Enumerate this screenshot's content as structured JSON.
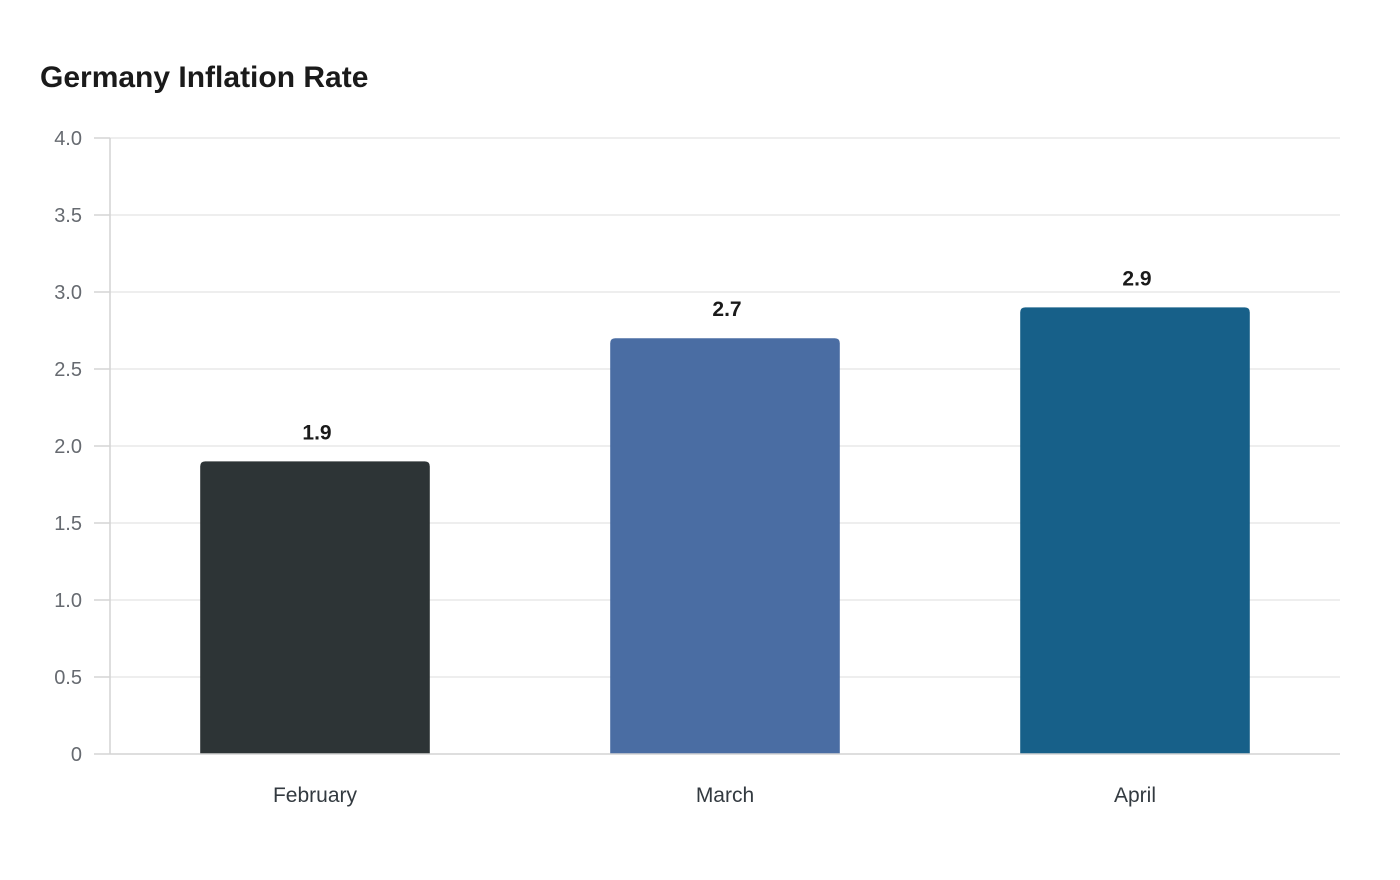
{
  "chart_data": {
    "type": "bar",
    "title": "Germany Inflation Rate",
    "xlabel": "",
    "ylabel": "",
    "categories": [
      "February",
      "March",
      "April"
    ],
    "values": [
      1.9,
      2.7,
      2.9
    ],
    "data_labels": [
      "1.9",
      "2.7",
      "2.9"
    ],
    "colors": [
      "#2d3436",
      "#4a6da3",
      "#176089"
    ],
    "ylim": [
      0,
      4.0
    ],
    "y_ticks": [
      {
        "value": 0,
        "label": "0"
      },
      {
        "value": 0.5,
        "label": "0.5"
      },
      {
        "value": 1.0,
        "label": "1.0"
      },
      {
        "value": 1.5,
        "label": "1.5"
      },
      {
        "value": 2.0,
        "label": "2.0"
      },
      {
        "value": 2.5,
        "label": "2.5"
      },
      {
        "value": 3.0,
        "label": "3.0"
      },
      {
        "value": 3.5,
        "label": "3.5"
      },
      {
        "value": 4.0,
        "label": "4.0"
      }
    ],
    "grid": true,
    "legend": "none"
  }
}
